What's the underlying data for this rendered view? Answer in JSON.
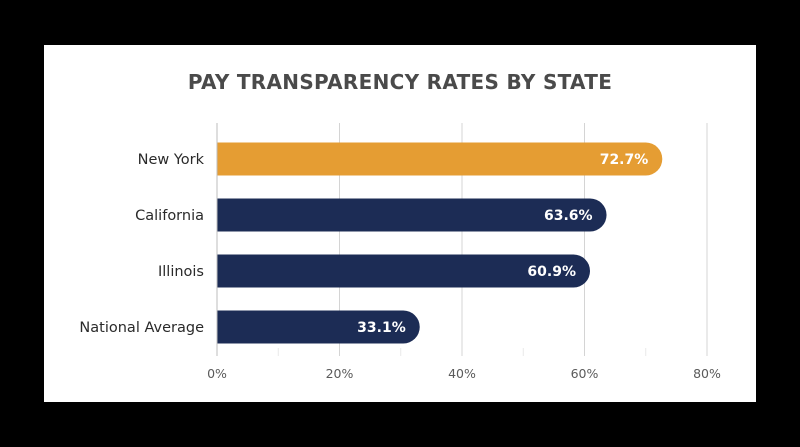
{
  "chart_data": {
    "type": "bar",
    "orientation": "horizontal",
    "title": "PAY TRANSPARENCY RATES BY STATE",
    "categories": [
      "New York",
      "California",
      "Illinois",
      "National Average"
    ],
    "values": [
      72.7,
      63.6,
      60.9,
      33.1
    ],
    "value_labels": [
      "72.7%",
      "63.6%",
      "60.9%",
      "33.1%"
    ],
    "xlim": [
      0,
      80
    ],
    "x_ticks": [
      0,
      20,
      40,
      60,
      80
    ],
    "x_tick_labels": [
      "0%",
      "20%",
      "40%",
      "60%",
      "80%"
    ],
    "grid": true,
    "legend": "none",
    "colors": {
      "highlight": "#E59D33",
      "bar": "#1C2C55",
      "background": "#000000",
      "card": "#FFFFFF"
    },
    "highlight_index": 0
  }
}
